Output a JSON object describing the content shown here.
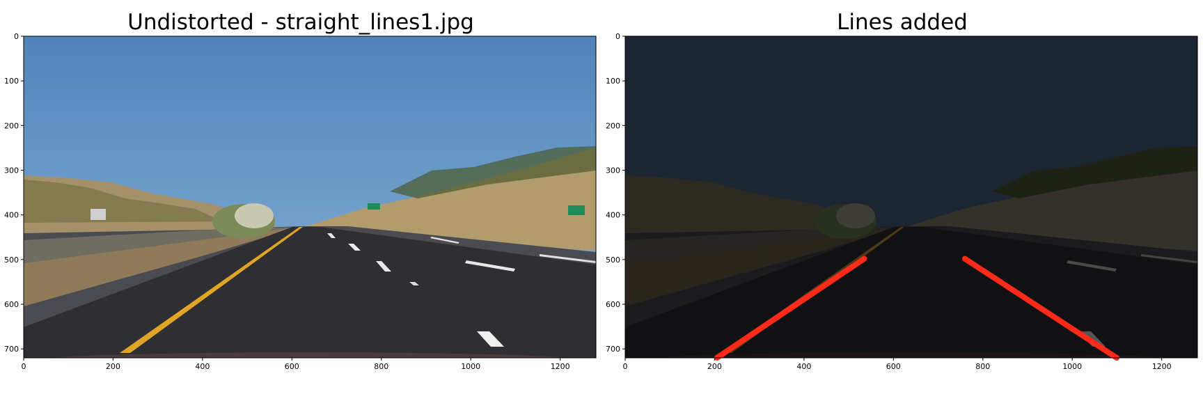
{
  "figures": [
    {
      "title": "Undistorted - straight_lines1.jpg",
      "xticks": [
        "0",
        "200",
        "400",
        "600",
        "800",
        "1000",
        "1200"
      ],
      "yticks": [
        "0",
        "100",
        "200",
        "300",
        "400",
        "500",
        "600",
        "700"
      ],
      "xlim": [
        0,
        1280
      ],
      "ylim": [
        720,
        0
      ],
      "overlay": "none"
    },
    {
      "title": "Lines added",
      "xticks": [
        "0",
        "200",
        "400",
        "600",
        "800",
        "1000",
        "1200"
      ],
      "yticks": [
        "0",
        "100",
        "200",
        "300",
        "400",
        "500",
        "600",
        "700"
      ],
      "xlim": [
        0,
        1280
      ],
      "ylim": [
        720,
        0
      ],
      "overlay": "darkened",
      "lines": [
        {
          "x1": 205,
          "y1": 720,
          "x2": 535,
          "y2": 498,
          "color": "#ff2a1a"
        },
        {
          "x1": 760,
          "y1": 498,
          "x2": 1100,
          "y2": 720,
          "color": "#ff2a1a"
        }
      ]
    }
  ]
}
